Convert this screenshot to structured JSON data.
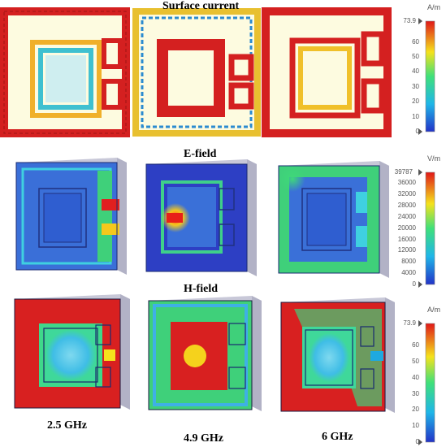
{
  "panels": {
    "surface_title": "Surface current",
    "efield_title": "E-field",
    "hfield_title": "H-field"
  },
  "frequencies": [
    "2.5 GHz",
    "4.9 GHz",
    "6 GHz"
  ],
  "colorbars": [
    {
      "id": "surface",
      "unit": "A/m",
      "max": "73.9",
      "ticks": [
        "60",
        "50",
        "40",
        "30",
        "20",
        "10",
        "0"
      ]
    },
    {
      "id": "efield",
      "unit": "V/m",
      "max": "39787",
      "ticks": [
        "36000",
        "32000",
        "28000",
        "24000",
        "20000",
        "16000",
        "12000",
        "8000",
        "4000",
        "0"
      ]
    },
    {
      "id": "hfield",
      "unit": "A/m",
      "max": "73.9",
      "ticks": [
        "60",
        "50",
        "40",
        "30",
        "20",
        "10",
        "0"
      ]
    }
  ],
  "colors": {
    "hot": "#d81f1f",
    "warm": "#f5d21c",
    "mid": "#3bd07a",
    "cool": "#1fa9e0",
    "cold": "#2d38c8",
    "surface_fill": "#fdfbe0"
  }
}
